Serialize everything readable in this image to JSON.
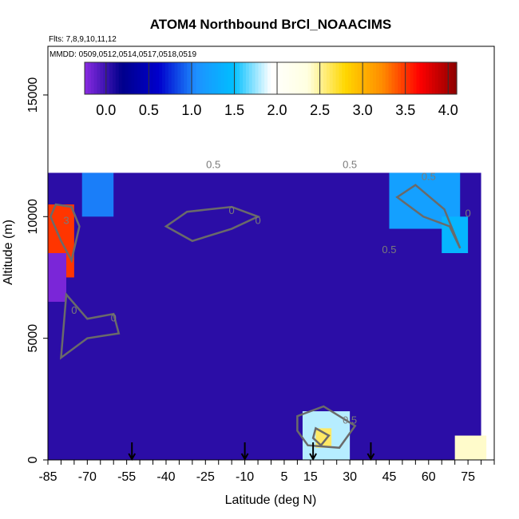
{
  "chart_data": {
    "type": "heatmap",
    "title": "ATOM4 Northbound BrCl_NOAACIMS",
    "subtitle_flights": "Flts: 7,8,9,10,11,12",
    "subtitle_dates": "MMDD: 0509,0512,0514,0517,0518,0519",
    "xlabel": "Latitude (deg N)",
    "ylabel": "Altitude (m)",
    "xlim": [
      -85,
      85
    ],
    "ylim": [
      0,
      17000
    ],
    "x_ticks": [
      "-85",
      "-70",
      "-55",
      "-40",
      "-25",
      "-10",
      "5",
      "15",
      "30",
      "45",
      "60",
      "75"
    ],
    "x_tick_values": [
      -85,
      -70,
      -55,
      -40,
      -25,
      -10,
      5,
      15,
      30,
      45,
      60,
      75
    ],
    "y_ticks": [
      "0",
      "5000",
      "10000",
      "15000"
    ],
    "y_tick_values": [
      0,
      5000,
      10000,
      15000
    ],
    "colorbar": {
      "ticks": [
        "0.0",
        "0.5",
        "1.0",
        "1.5",
        "2.0",
        "2.5",
        "3.0",
        "3.5",
        "4.0"
      ],
      "tick_values": [
        0,
        0.5,
        1,
        1.5,
        2,
        2.5,
        3,
        3.5,
        4
      ],
      "range": [
        -0.25,
        4.1
      ],
      "colors": [
        "#8a2be2",
        "#00008b",
        "#0000cd",
        "#1e90ff",
        "#00bfff",
        "#ffffff",
        "#ffffe0",
        "#ffd700",
        "#ff8c00",
        "#ff0000",
        "#8b0000"
      ]
    },
    "contour_labels": [
      "0.5",
      "0.5",
      "0",
      "0",
      "0",
      "0",
      "0.5",
      "0.5",
      "0.5",
      "3",
      "0"
    ],
    "arrow_latitudes": [
      -53,
      -10,
      16,
      38
    ],
    "field_regions": [
      {
        "lat_range": [
          -85,
          -75
        ],
        "alt_range": [
          7500,
          10500
        ],
        "value": 3.5
      },
      {
        "lat_range": [
          -85,
          -78
        ],
        "alt_range": [
          6500,
          8500
        ],
        "value": -0.2
      },
      {
        "lat_range": [
          -72,
          -60
        ],
        "alt_range": [
          10000,
          11800
        ],
        "value": 1.0
      },
      {
        "lat_range": [
          -85,
          80
        ],
        "alt_range": [
          0,
          11800
        ],
        "value": 0.05
      },
      {
        "lat_range": [
          12,
          30
        ],
        "alt_range": [
          0,
          2000
        ],
        "value": 1.8
      },
      {
        "lat_range": [
          17,
          23
        ],
        "alt_range": [
          500,
          1300
        ],
        "value": 2.6
      },
      {
        "lat_range": [
          70,
          82
        ],
        "alt_range": [
          0,
          1000
        ],
        "value": 2.4
      },
      {
        "lat_range": [
          45,
          72
        ],
        "alt_range": [
          9500,
          11800
        ],
        "value": 1.2
      },
      {
        "lat_range": [
          65,
          75
        ],
        "alt_range": [
          8500,
          10000
        ],
        "value": 1.4
      }
    ]
  }
}
